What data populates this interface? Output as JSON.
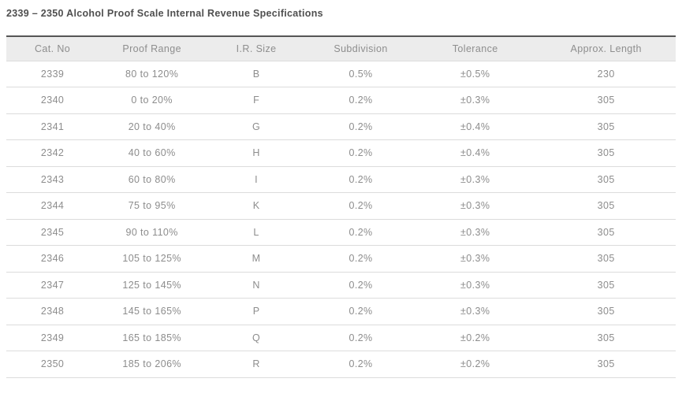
{
  "page": {
    "title": "2339 – 2350 Alcohol Proof Scale Internal Revenue Specifications"
  },
  "table": {
    "columns": [
      "Cat. No",
      "Proof Range",
      "I.R. Size",
      "Subdivision",
      "Tolerance",
      "Approx. Length"
    ],
    "rows": [
      {
        "cat_no": "2339",
        "proof_range": "80 to 120%",
        "ir_size": "B",
        "subdivision": "0.5%",
        "tolerance": "±0.5%",
        "approx_length": "230"
      },
      {
        "cat_no": "2340",
        "proof_range": "0 to 20%",
        "ir_size": "F",
        "subdivision": "0.2%",
        "tolerance": "±0.3%",
        "approx_length": "305"
      },
      {
        "cat_no": "2341",
        "proof_range": "20 to 40%",
        "ir_size": "G",
        "subdivision": "0.2%",
        "tolerance": "±0.4%",
        "approx_length": "305"
      },
      {
        "cat_no": "2342",
        "proof_range": "40 to 60%",
        "ir_size": "H",
        "subdivision": "0.2%",
        "tolerance": "±0.4%",
        "approx_length": "305"
      },
      {
        "cat_no": "2343",
        "proof_range": "60 to 80%",
        "ir_size": "I",
        "subdivision": "0.2%",
        "tolerance": "±0.3%",
        "approx_length": "305"
      },
      {
        "cat_no": "2344",
        "proof_range": "75 to 95%",
        "ir_size": "K",
        "subdivision": "0.2%",
        "tolerance": "±0.3%",
        "approx_length": "305"
      },
      {
        "cat_no": "2345",
        "proof_range": "90 to 110%",
        "ir_size": "L",
        "subdivision": "0.2%",
        "tolerance": "±0.3%",
        "approx_length": "305"
      },
      {
        "cat_no": "2346",
        "proof_range": "105 to 125%",
        "ir_size": "M",
        "subdivision": "0.2%",
        "tolerance": "±0.3%",
        "approx_length": "305"
      },
      {
        "cat_no": "2347",
        "proof_range": "125 to 145%",
        "ir_size": "N",
        "subdivision": "0.2%",
        "tolerance": "±0.3%",
        "approx_length": "305"
      },
      {
        "cat_no": "2348",
        "proof_range": "145 to 165%",
        "ir_size": "P",
        "subdivision": "0.2%",
        "tolerance": "±0.3%",
        "approx_length": "305"
      },
      {
        "cat_no": "2349",
        "proof_range": "165 to 185%",
        "ir_size": "Q",
        "subdivision": "0.2%",
        "tolerance": "±0.2%",
        "approx_length": "305"
      },
      {
        "cat_no": "2350",
        "proof_range": "185 to 206%",
        "ir_size": "R",
        "subdivision": "0.2%",
        "tolerance": "±0.2%",
        "approx_length": "305"
      }
    ],
    "field_order": [
      "cat_no",
      "proof_range",
      "ir_size",
      "subdivision",
      "tolerance",
      "approx_length"
    ]
  },
  "colors": {
    "header_bg": "#ececec",
    "header_top_border": "#565656",
    "row_border": "#dcdcdc",
    "title_text": "#4f4f4f",
    "body_text": "#8d8d8d",
    "header_text": "#8e8e8e",
    "page_bg": "#ffffff"
  }
}
